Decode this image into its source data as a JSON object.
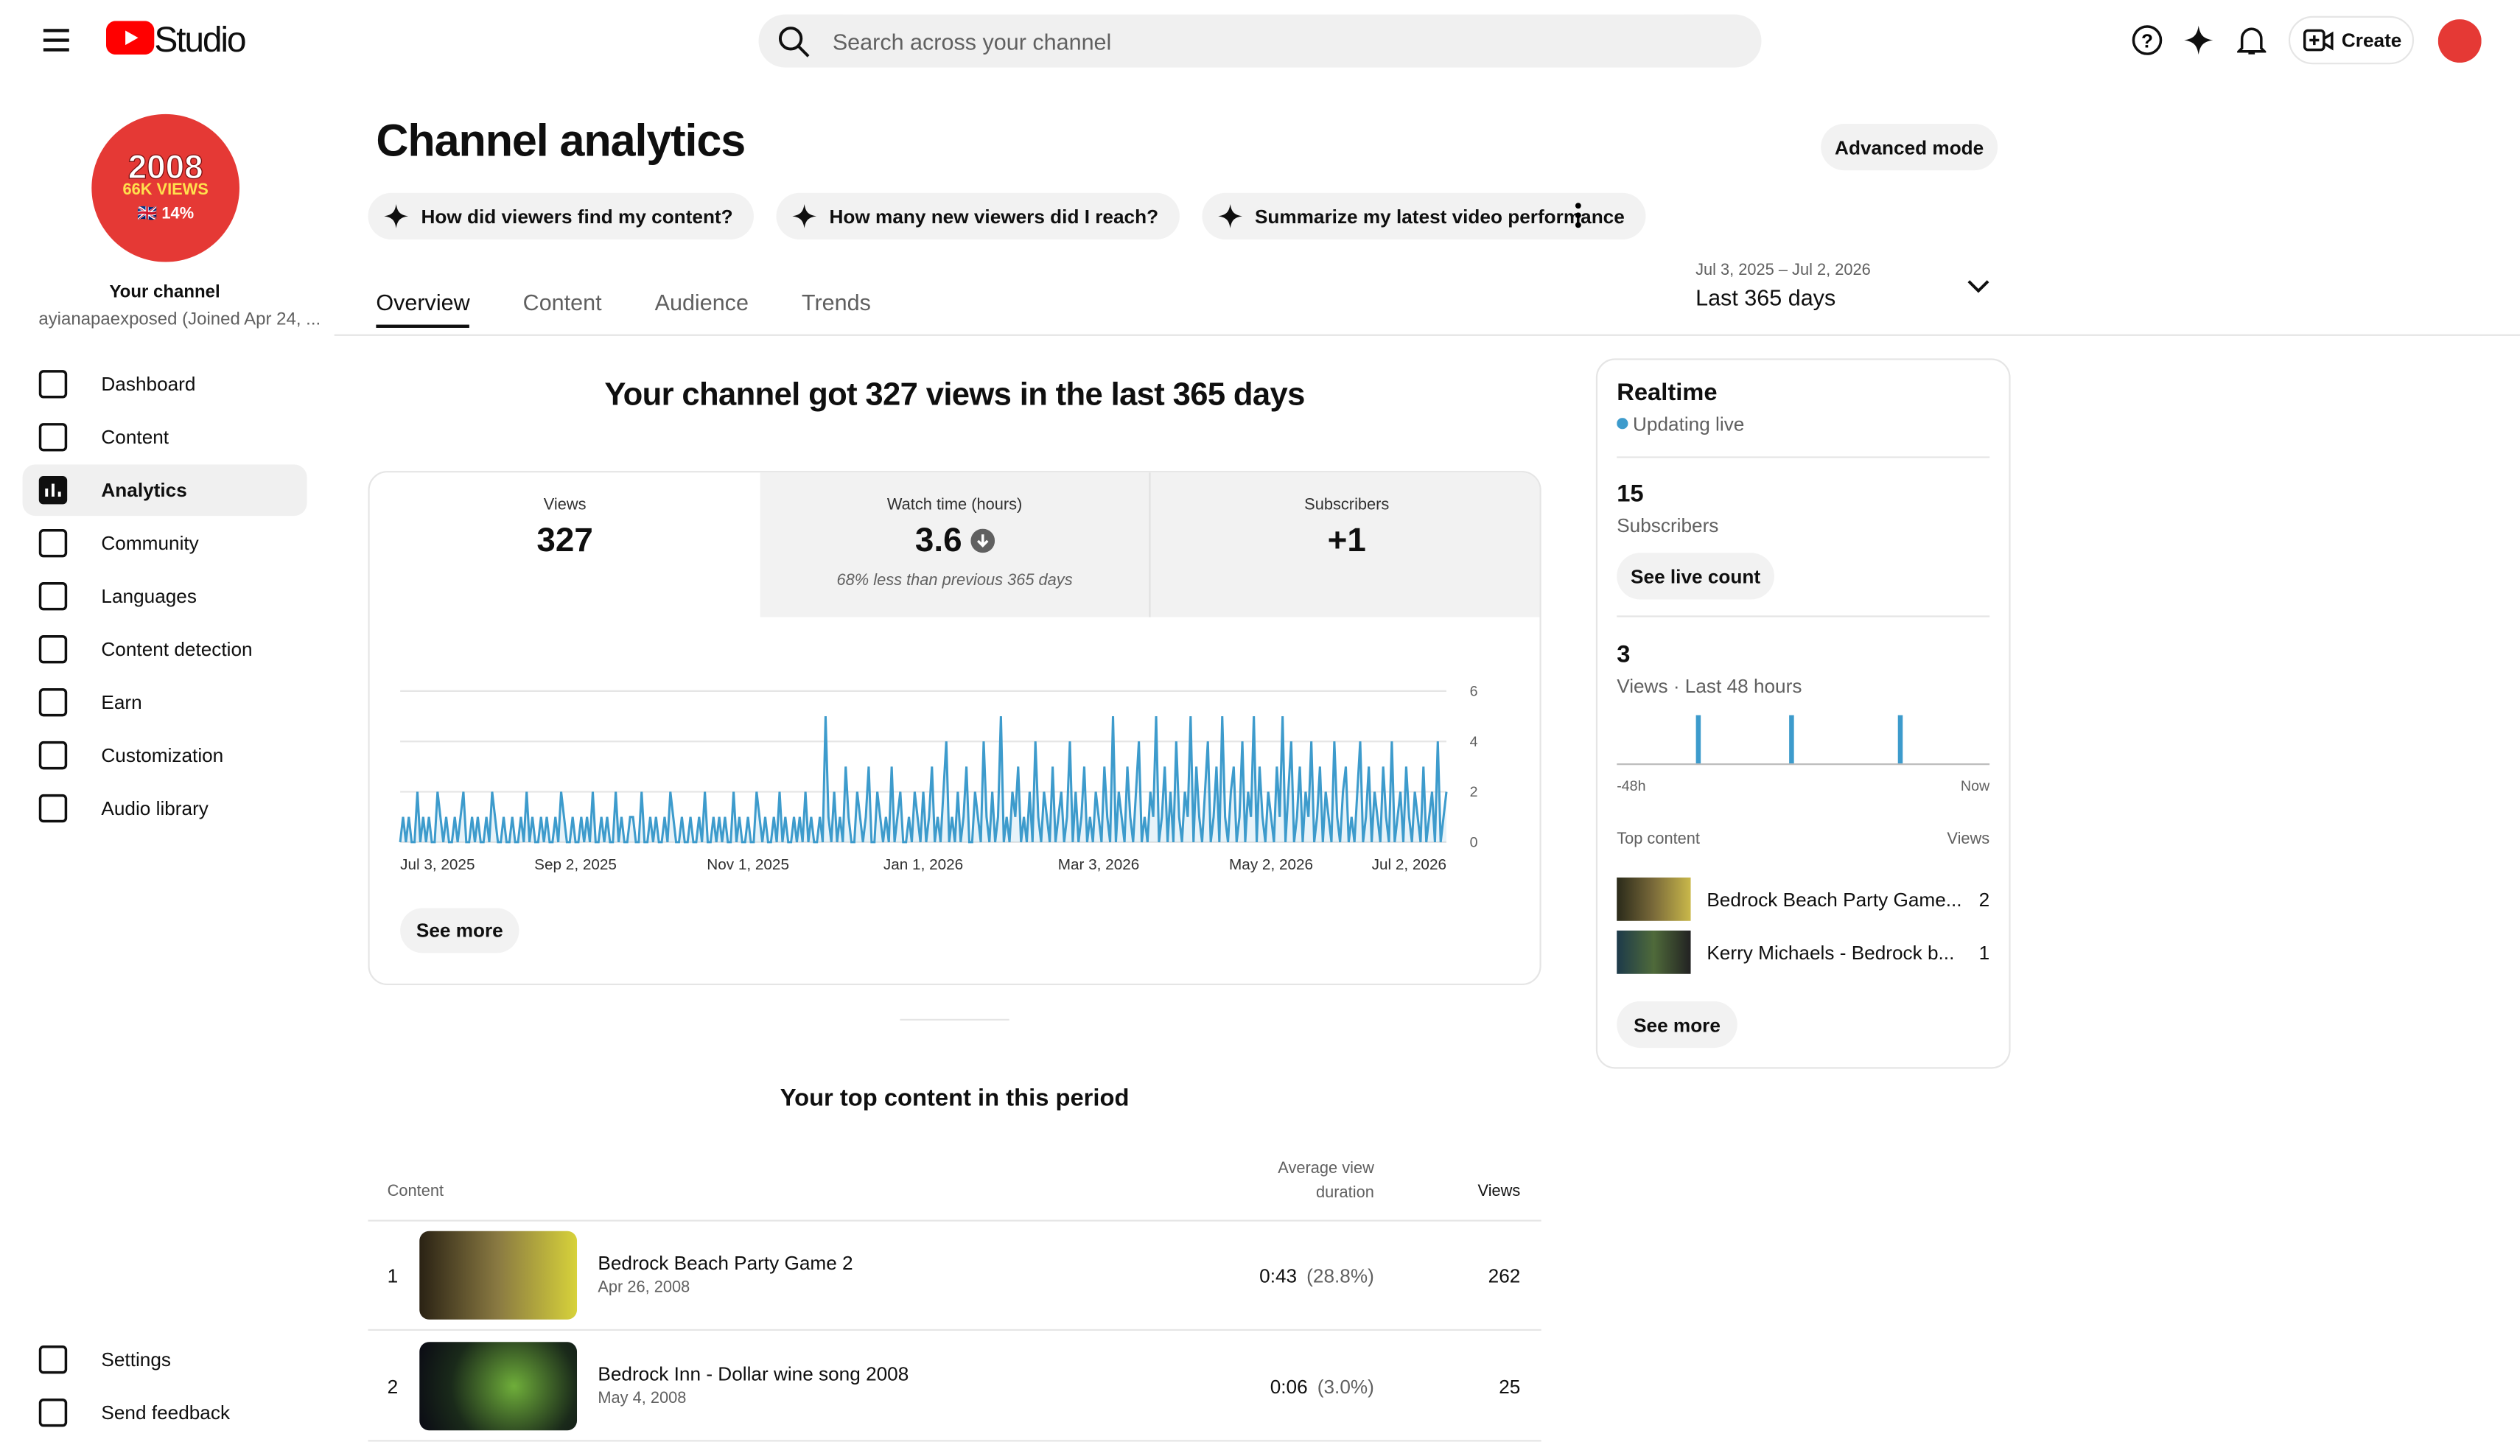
{
  "header": {
    "logo": "Studio",
    "search_placeholder": "Search across your channel",
    "create": "Create"
  },
  "sidebar": {
    "avatar": [
      "2008",
      "66K VIEWS",
      "🇬🇧 14%"
    ],
    "channel_label": "Your channel",
    "channel_name": "ayianapaexposed (Joined Apr 24, ...",
    "nav": [
      "Dashboard",
      "Content",
      "Analytics",
      "Community",
      "Languages",
      "Content detection",
      "Earn",
      "Customization",
      "Audio library"
    ],
    "footer_nav": [
      "Settings",
      "Send feedback"
    ]
  },
  "page": {
    "title": "Channel analytics",
    "advanced": "Advanced mode",
    "chips": [
      "How did viewers find my content?",
      "How many new viewers did I reach?",
      "Summarize my latest video performance"
    ],
    "tabs": [
      "Overview",
      "Content",
      "Audience",
      "Trends"
    ],
    "date_range": "Jul 3, 2025 – Jul 2, 2026",
    "period": "Last 365 days"
  },
  "summary": {
    "headline": "Your channel got 327 views in the last 365 days",
    "metrics": [
      {
        "label": "Views",
        "value": "327"
      },
      {
        "label": "Watch time (hours)",
        "value": "3.6",
        "note": "68% less than previous 365 days"
      },
      {
        "label": "Subscribers",
        "value": "+1"
      }
    ],
    "see_more": "See more"
  },
  "chart_data": {
    "type": "line",
    "color": "#3d9bcc",
    "grid": true,
    "values": [
      0,
      1,
      0,
      1,
      0,
      0,
      2,
      0,
      1,
      0,
      1,
      0,
      0,
      2,
      1,
      0,
      1,
      0,
      0,
      1,
      0,
      1,
      2,
      0,
      0,
      1,
      0,
      1,
      0,
      0,
      1,
      0,
      2,
      1,
      0,
      0,
      1,
      0,
      0,
      1,
      0,
      0,
      1,
      0,
      2,
      0,
      1,
      0,
      0,
      1,
      0,
      1,
      0,
      0,
      1,
      0,
      2,
      1,
      0,
      0,
      1,
      0,
      0,
      1,
      0,
      1,
      0,
      2,
      0,
      0,
      1,
      0,
      1,
      0,
      0,
      2,
      0,
      1,
      0,
      0,
      1,
      1,
      0,
      0,
      2,
      0,
      0,
      1,
      0,
      1,
      0,
      0,
      1,
      0,
      2,
      1,
      0,
      0,
      1,
      0,
      0,
      1,
      0,
      0,
      1,
      0,
      2,
      0,
      0,
      1,
      0,
      1,
      0,
      1,
      0,
      0,
      2,
      0,
      1,
      0,
      0,
      1,
      0,
      0,
      2,
      1,
      0,
      1,
      0,
      0,
      1,
      0,
      2,
      0,
      1,
      0,
      0,
      1,
      0,
      1,
      0,
      2,
      0,
      1,
      0,
      0,
      1,
      0,
      5,
      1,
      0,
      2,
      0,
      1,
      0,
      3,
      1,
      0,
      0,
      2,
      1,
      0,
      1,
      3,
      0,
      0,
      2,
      1,
      0,
      1,
      0,
      3,
      0,
      1,
      2,
      0,
      0,
      1,
      0,
      2,
      1,
      0,
      2,
      0,
      1,
      3,
      0,
      1,
      0,
      2,
      4,
      0,
      1,
      0,
      2,
      0,
      1,
      3,
      0,
      0,
      2,
      1,
      0,
      4,
      1,
      0,
      2,
      0,
      1,
      5,
      0,
      1,
      0,
      2,
      1,
      3,
      0,
      1,
      0,
      2,
      0,
      4,
      1,
      0,
      2,
      1,
      0,
      3,
      0,
      1,
      2,
      0,
      1,
      4,
      0,
      2,
      0,
      1,
      3,
      0,
      1,
      0,
      2,
      1,
      0,
      3,
      1,
      0,
      5,
      0,
      2,
      1,
      0,
      3,
      1,
      0,
      2,
      4,
      0,
      1,
      0,
      2,
      1,
      5,
      0,
      1,
      3,
      0,
      2,
      0,
      4,
      1,
      0,
      2,
      1,
      5,
      0,
      3,
      1,
      0,
      2,
      4,
      0,
      1,
      3,
      0,
      5,
      1,
      0,
      2,
      3,
      0,
      1,
      4,
      0,
      2,
      1,
      5,
      0,
      3,
      1,
      0,
      2,
      1,
      0,
      3,
      1,
      5,
      0,
      2,
      4,
      0,
      1,
      3,
      0,
      2,
      1,
      4,
      0,
      1,
      3,
      0,
      2,
      1,
      0,
      4,
      1,
      0,
      2,
      3,
      0,
      1,
      0,
      2,
      4,
      0,
      1,
      3,
      0,
      2,
      1,
      0,
      3,
      1,
      0,
      4,
      0,
      1,
      2,
      0,
      3,
      1,
      0,
      2,
      1,
      0,
      3,
      0,
      1,
      2,
      0,
      4,
      0,
      1,
      2
    ],
    "xlim": [
      0,
      364
    ],
    "xticks": [
      {
        "value": 0,
        "label": "Jul 3, 2025"
      },
      {
        "value": 61,
        "label": "Sep 2, 2025"
      },
      {
        "value": 121,
        "label": "Nov 1, 2025"
      },
      {
        "value": 182,
        "label": "Jan 1, 2026"
      },
      {
        "value": 243,
        "label": "Mar 3, 2026"
      },
      {
        "value": 303,
        "label": "May 2, 2026"
      },
      {
        "value": 364,
        "label": "Jul 2, 2026"
      }
    ],
    "ylim": [
      0,
      6
    ],
    "yticks": [
      0,
      2,
      4,
      6
    ]
  },
  "realtime": {
    "title": "Realtime",
    "status": "Updating live",
    "subscribers": {
      "value": "15",
      "label": "Subscribers",
      "button": "See live count"
    },
    "views": {
      "value": "3",
      "label": "Views · Last 48 hours"
    },
    "chart": {
      "type": "bar",
      "color": "#3d9bcc",
      "values": [
        0,
        0,
        0,
        0,
        0,
        0,
        0,
        0,
        0,
        0,
        1,
        0,
        0,
        0,
        0,
        0,
        0,
        0,
        0,
        0,
        0,
        0,
        1,
        0,
        0,
        0,
        0,
        0,
        0,
        0,
        0,
        0,
        0,
        0,
        0,
        0,
        1,
        0,
        0,
        0,
        0,
        0,
        0,
        0,
        0,
        0,
        0,
        0
      ],
      "x_labels": [
        "-48h",
        "Now"
      ]
    },
    "top_header": [
      "Top content",
      "Views"
    ],
    "top": [
      {
        "title": "Bedrock Beach Party Game...",
        "views": "2"
      },
      {
        "title": "Kerry Michaels - Bedrock b...",
        "views": "1"
      }
    ],
    "see_more": "See more"
  },
  "top_content": {
    "title": "Your top content in this period",
    "columns": [
      "Content",
      "Average view duration",
      "Views"
    ],
    "rows": [
      {
        "rank": "1",
        "title": "Bedrock Beach Party Game 2",
        "date": "Apr 26, 2008",
        "duration": "0:43",
        "percent": "(28.8%)",
        "views": "262"
      },
      {
        "rank": "2",
        "title": "Bedrock Inn - Dollar wine song 2008",
        "date": "May 4, 2008",
        "duration": "0:06",
        "percent": "(3.0%)",
        "views": "25"
      }
    ]
  }
}
